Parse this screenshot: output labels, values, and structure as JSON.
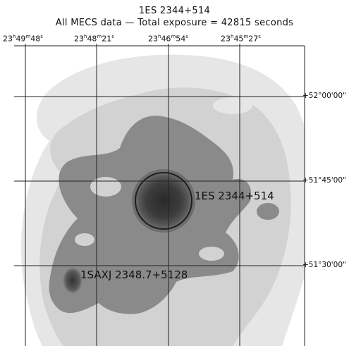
{
  "header": {
    "title": "1ES 2344+514",
    "subtitle": "All MECS data — Total exposure = 42815 seconds"
  },
  "ra_labels": [
    {
      "h": "23",
      "m": "49",
      "s": "48"
    },
    {
      "h": "23",
      "m": "48",
      "s": "21"
    },
    {
      "h": "23",
      "m": "46",
      "s": "54"
    },
    {
      "h": "23",
      "m": "45",
      "s": "27"
    }
  ],
  "dec_labels": [
    "+52°00'00\"",
    "+51°45'00\"",
    "+51°30'00\""
  ],
  "sources": [
    {
      "label": "1ES 2344+514"
    },
    {
      "label": "1SAXJ 2348.7+5128"
    }
  ]
}
